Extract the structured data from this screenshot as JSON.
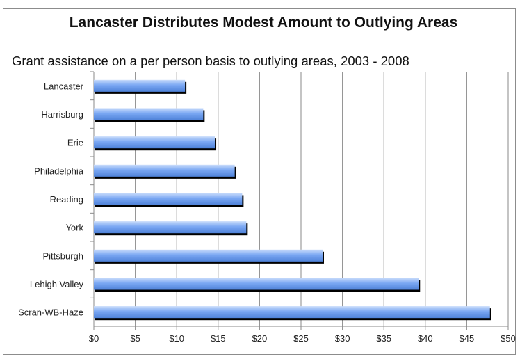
{
  "chart_data": {
    "type": "bar",
    "orientation": "horizontal",
    "title": "Lancaster Distributes Modest Amount to Outlying Areas",
    "subtitle": "Grant assistance on a per person basis to outlying areas, 2003 - 2008",
    "categories": [
      "Lancaster",
      "Harrisburg",
      "Erie",
      "Philadelphia",
      "Reading",
      "York",
      "Pittsburgh",
      "Lehigh Valley",
      "Scran-WB-Haze"
    ],
    "values": [
      11,
      13.2,
      14.6,
      17,
      17.9,
      18.4,
      27.6,
      39.2,
      47.8
    ],
    "xlim": [
      0,
      50
    ],
    "x_ticks": [
      0,
      5,
      10,
      15,
      20,
      25,
      30,
      35,
      40,
      45,
      50
    ],
    "x_tick_labels": [
      "$0",
      "$5",
      "$10",
      "$15",
      "$20",
      "$25",
      "$30",
      "$35",
      "$40",
      "$45",
      "$50"
    ],
    "grid": "vertical",
    "bar_color": "#6f9ff0",
    "bar_shadow_color": "#000000",
    "xlabel": "",
    "ylabel": ""
  }
}
